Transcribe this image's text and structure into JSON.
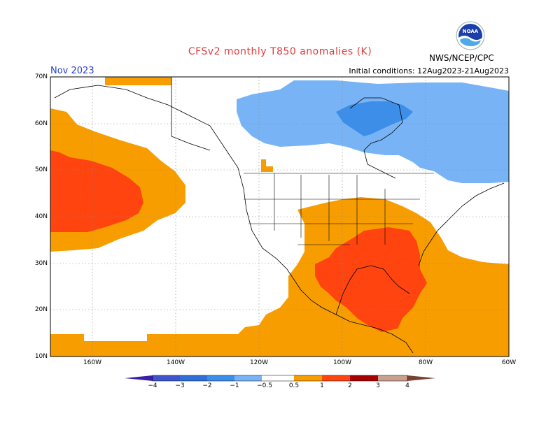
{
  "title": "CFSv2 monthly T850 anomalies (K)",
  "month": "Nov 2023",
  "initial_conditions": "Initial conditions: 12Aug2023-21Aug2023",
  "agency": "NWS/NCEP/CPC",
  "logo_text": "NOAA",
  "lat_labels": [
    "70N",
    "60N",
    "50N",
    "40N",
    "30N",
    "20N",
    "10N"
  ],
  "lon_labels": [
    "160W",
    "140W",
    "120W",
    "100W",
    "80W",
    "60W"
  ],
  "colorbar": {
    "labels": [
      "−4",
      "−3",
      "−2",
      "−1",
      "−0.5",
      "0.5",
      "1",
      "2",
      "3",
      "4"
    ],
    "colors": [
      "#3a1ea8",
      "#3f55d0",
      "#2f6fd6",
      "#3c8ee8",
      "#78b4f5",
      "#ffffff",
      "#f79d00",
      "#ff4410",
      "#a80000",
      "#c9a090",
      "#7a4030"
    ]
  },
  "map": {
    "extent": {
      "lon": [
        -170,
        -60
      ],
      "lat": [
        10,
        70
      ]
    },
    "gridlines": "dotted"
  }
}
